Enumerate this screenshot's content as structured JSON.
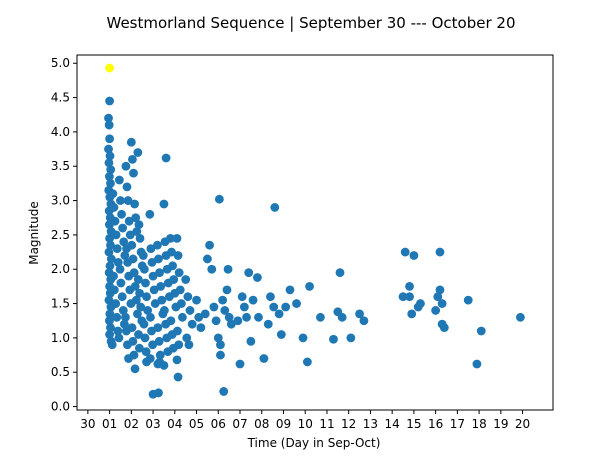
{
  "chart_data": {
    "type": "scatter",
    "title": "Westmorland Sequence | September 30 --- October 20",
    "xlabel": "Time (Day in Sep-Oct)",
    "ylabel": "Magnitude",
    "xlim": [
      -0.5,
      21.4
    ],
    "ylim": [
      -0.05,
      5.12
    ],
    "grid": false,
    "x_ticks": [
      {
        "value": 0,
        "label": "30"
      },
      {
        "value": 1,
        "label": "01"
      },
      {
        "value": 2,
        "label": "02"
      },
      {
        "value": 3,
        "label": "03"
      },
      {
        "value": 4,
        "label": "04"
      },
      {
        "value": 5,
        "label": "05"
      },
      {
        "value": 6,
        "label": "06"
      },
      {
        "value": 7,
        "label": "07"
      },
      {
        "value": 8,
        "label": "08"
      },
      {
        "value": 9,
        "label": "09"
      },
      {
        "value": 10,
        "label": "10"
      },
      {
        "value": 11,
        "label": "11"
      },
      {
        "value": 12,
        "label": "12"
      },
      {
        "value": 13,
        "label": "13"
      },
      {
        "value": 14,
        "label": "14"
      },
      {
        "value": 15,
        "label": "15"
      },
      {
        "value": 16,
        "label": "16"
      },
      {
        "value": 17,
        "label": "17"
      },
      {
        "value": 18,
        "label": "18"
      },
      {
        "value": 19,
        "label": "19"
      },
      {
        "value": 20,
        "label": "20"
      }
    ],
    "y_ticks": [
      {
        "value": 0.0,
        "label": "0.0"
      },
      {
        "value": 0.5,
        "label": "0.5"
      },
      {
        "value": 1.0,
        "label": "1.0"
      },
      {
        "value": 1.5,
        "label": "1.5"
      },
      {
        "value": 2.0,
        "label": "2.0"
      },
      {
        "value": 2.5,
        "label": "2.5"
      },
      {
        "value": 3.0,
        "label": "3.0"
      },
      {
        "value": 3.5,
        "label": "3.5"
      },
      {
        "value": 4.0,
        "label": "4.0"
      },
      {
        "value": 4.5,
        "label": "4.5"
      },
      {
        "value": 5.0,
        "label": "5.0"
      }
    ],
    "series": [
      {
        "color": "#1f77b4",
        "points": [
          [
            0.95,
            4.2
          ],
          [
            1.0,
            4.45
          ],
          [
            0.98,
            4.1
          ],
          [
            1.0,
            3.9
          ],
          [
            0.95,
            3.75
          ],
          [
            1.02,
            3.65
          ],
          [
            0.97,
            3.55
          ],
          [
            1.05,
            3.45
          ],
          [
            0.99,
            3.35
          ],
          [
            1.04,
            3.25
          ],
          [
            0.96,
            3.15
          ],
          [
            1.01,
            3.05
          ],
          [
            1.06,
            2.95
          ],
          [
            0.98,
            2.85
          ],
          [
            1.03,
            2.75
          ],
          [
            0.99,
            2.65
          ],
          [
            1.07,
            2.55
          ],
          [
            1.0,
            2.45
          ],
          [
            1.04,
            2.35
          ],
          [
            0.97,
            2.25
          ],
          [
            1.08,
            2.15
          ],
          [
            1.02,
            2.05
          ],
          [
            0.98,
            1.95
          ],
          [
            1.05,
            1.85
          ],
          [
            1.0,
            1.75
          ],
          [
            1.03,
            1.65
          ],
          [
            0.97,
            1.55
          ],
          [
            1.06,
            1.45
          ],
          [
            1.01,
            1.35
          ],
          [
            0.99,
            1.25
          ],
          [
            1.04,
            1.15
          ],
          [
            1.0,
            1.05
          ],
          [
            1.07,
            0.95
          ],
          [
            1.15,
            3.1
          ],
          [
            1.2,
            2.9
          ],
          [
            1.25,
            2.7
          ],
          [
            1.3,
            2.5
          ],
          [
            1.35,
            2.3
          ],
          [
            1.4,
            2.1
          ],
          [
            1.18,
            1.9
          ],
          [
            1.22,
            1.7
          ],
          [
            1.28,
            1.5
          ],
          [
            1.33,
            1.3
          ],
          [
            1.38,
            1.1
          ],
          [
            1.12,
            0.9
          ],
          [
            1.45,
            3.3
          ],
          [
            1.5,
            3.0
          ],
          [
            1.55,
            2.8
          ],
          [
            1.6,
            2.6
          ],
          [
            1.65,
            2.4
          ],
          [
            1.7,
            2.2
          ],
          [
            1.48,
            2.0
          ],
          [
            1.52,
            1.8
          ],
          [
            1.58,
            1.6
          ],
          [
            1.63,
            1.4
          ],
          [
            1.68,
            1.2
          ],
          [
            1.43,
            1.0
          ],
          [
            1.75,
            3.5
          ],
          [
            1.8,
            3.2
          ],
          [
            1.85,
            3.0
          ],
          [
            1.9,
            2.7
          ],
          [
            1.95,
            2.5
          ],
          [
            1.78,
            2.3
          ],
          [
            1.83,
            2.1
          ],
          [
            1.88,
            1.9
          ],
          [
            1.93,
            1.7
          ],
          [
            1.98,
            1.5
          ],
          [
            1.73,
            1.3
          ],
          [
            1.77,
            1.1
          ],
          [
            1.82,
            0.9
          ],
          [
            1.87,
            0.7
          ],
          [
            2.0,
            3.85
          ],
          [
            2.05,
            3.6
          ],
          [
            2.1,
            3.4
          ],
          [
            2.15,
            2.95
          ],
          [
            2.2,
            2.75
          ],
          [
            2.25,
            2.55
          ],
          [
            2.02,
            2.35
          ],
          [
            2.08,
            2.15
          ],
          [
            2.13,
            1.95
          ],
          [
            2.18,
            1.75
          ],
          [
            2.23,
            1.55
          ],
          [
            2.28,
            1.35
          ],
          [
            2.03,
            1.15
          ],
          [
            2.07,
            0.95
          ],
          [
            2.12,
            0.75
          ],
          [
            2.17,
            0.55
          ],
          [
            2.3,
            3.7
          ],
          [
            2.35,
            2.65
          ],
          [
            2.4,
            2.45
          ],
          [
            2.45,
            2.25
          ],
          [
            2.5,
            2.05
          ],
          [
            2.32,
            1.85
          ],
          [
            2.38,
            1.65
          ],
          [
            2.43,
            1.45
          ],
          [
            2.48,
            1.25
          ],
          [
            2.33,
            1.05
          ],
          [
            2.37,
            0.85
          ],
          [
            2.55,
            2.2
          ],
          [
            2.6,
            2.0
          ],
          [
            2.65,
            1.8
          ],
          [
            2.7,
            1.6
          ],
          [
            2.75,
            1.4
          ],
          [
            2.58,
            1.2
          ],
          [
            2.63,
            1.0
          ],
          [
            2.68,
            0.8
          ],
          [
            2.85,
            2.8
          ],
          [
            2.9,
            2.3
          ],
          [
            2.95,
            2.1
          ],
          [
            3.0,
            1.9
          ],
          [
            3.05,
            1.7
          ],
          [
            3.1,
            1.5
          ],
          [
            2.88,
            1.3
          ],
          [
            2.93,
            1.1
          ],
          [
            2.98,
            0.9
          ],
          [
            2.87,
            0.7
          ],
          [
            3.2,
            2.35
          ],
          [
            3.25,
            2.15
          ],
          [
            3.3,
            1.95
          ],
          [
            3.35,
            1.75
          ],
          [
            3.4,
            1.55
          ],
          [
            3.45,
            1.35
          ],
          [
            3.22,
            1.15
          ],
          [
            3.28,
            0.95
          ],
          [
            3.33,
            0.75
          ],
          [
            3.22,
            0.62
          ],
          [
            3.5,
            2.95
          ],
          [
            3.55,
            2.4
          ],
          [
            3.6,
            2.2
          ],
          [
            3.65,
            2.0
          ],
          [
            3.7,
            1.8
          ],
          [
            3.75,
            1.6
          ],
          [
            3.52,
            1.4
          ],
          [
            3.58,
            1.2
          ],
          [
            3.63,
            1.0
          ],
          [
            3.68,
            0.8
          ],
          [
            3.6,
            3.62
          ],
          [
            3.8,
            2.45
          ],
          [
            3.85,
            2.25
          ],
          [
            3.9,
            2.05
          ],
          [
            3.95,
            1.85
          ],
          [
            4.0,
            1.65
          ],
          [
            4.05,
            1.45
          ],
          [
            3.82,
            1.25
          ],
          [
            3.88,
            1.05
          ],
          [
            3.93,
            0.85
          ],
          [
            4.1,
            2.45
          ],
          [
            4.15,
            2.2
          ],
          [
            4.2,
            1.95
          ],
          [
            4.25,
            1.7
          ],
          [
            4.3,
            1.5
          ],
          [
            4.35,
            1.3
          ],
          [
            4.12,
            1.1
          ],
          [
            4.18,
            0.9
          ],
          [
            4.1,
            0.68
          ],
          [
            4.15,
            0.43
          ],
          [
            4.5,
            1.85
          ],
          [
            4.6,
            1.6
          ],
          [
            4.7,
            1.4
          ],
          [
            4.8,
            1.2
          ],
          [
            4.55,
            1.0
          ],
          [
            4.65,
            0.9
          ],
          [
            3.0,
            0.18
          ],
          [
            3.25,
            0.2
          ],
          [
            3.3,
            0.65
          ],
          [
            3.5,
            0.6
          ],
          [
            2.7,
            0.65
          ],
          [
            5.0,
            1.55
          ],
          [
            5.1,
            1.3
          ],
          [
            5.2,
            1.15
          ],
          [
            5.5,
            2.15
          ],
          [
            5.6,
            2.35
          ],
          [
            5.7,
            2.0
          ],
          [
            5.4,
            1.35
          ],
          [
            5.8,
            1.45
          ],
          [
            5.9,
            1.25
          ],
          [
            6.0,
            1.0
          ],
          [
            6.05,
            3.02
          ],
          [
            6.1,
            0.9
          ],
          [
            6.1,
            0.75
          ],
          [
            6.2,
            1.55
          ],
          [
            6.3,
            1.4
          ],
          [
            6.25,
            0.22
          ],
          [
            6.4,
            1.7
          ],
          [
            6.45,
            2.0
          ],
          [
            6.5,
            1.3
          ],
          [
            6.6,
            1.2
          ],
          [
            6.9,
            1.25
          ],
          [
            7.0,
            0.62
          ],
          [
            7.1,
            1.6
          ],
          [
            7.2,
            1.45
          ],
          [
            7.3,
            1.3
          ],
          [
            7.4,
            1.95
          ],
          [
            7.5,
            0.95
          ],
          [
            7.6,
            1.55
          ],
          [
            7.8,
            1.88
          ],
          [
            7.85,
            1.3
          ],
          [
            8.1,
            0.7
          ],
          [
            8.3,
            1.2
          ],
          [
            8.4,
            1.6
          ],
          [
            8.55,
            1.45
          ],
          [
            8.6,
            2.9
          ],
          [
            8.8,
            1.35
          ],
          [
            8.9,
            1.05
          ],
          [
            9.1,
            1.45
          ],
          [
            9.3,
            1.7
          ],
          [
            9.6,
            1.5
          ],
          [
            9.9,
            1.0
          ],
          [
            10.1,
            0.65
          ],
          [
            10.2,
            1.75
          ],
          [
            10.7,
            1.3
          ],
          [
            11.3,
            0.98
          ],
          [
            11.5,
            1.38
          ],
          [
            11.6,
            1.95
          ],
          [
            11.7,
            1.3
          ],
          [
            12.1,
            1.0
          ],
          [
            12.5,
            1.35
          ],
          [
            12.7,
            1.25
          ],
          [
            14.5,
            1.6
          ],
          [
            14.6,
            2.25
          ],
          [
            14.8,
            1.6
          ],
          [
            14.8,
            1.75
          ],
          [
            14.9,
            1.35
          ],
          [
            15.0,
            2.2
          ],
          [
            15.2,
            1.45
          ],
          [
            15.3,
            1.5
          ],
          [
            16.0,
            1.4
          ],
          [
            16.1,
            1.6
          ],
          [
            16.2,
            1.7
          ],
          [
            16.2,
            2.25
          ],
          [
            16.3,
            1.5
          ],
          [
            16.3,
            1.2
          ],
          [
            16.4,
            1.15
          ],
          [
            17.5,
            1.55
          ],
          [
            17.9,
            0.62
          ],
          [
            18.1,
            1.1
          ],
          [
            19.9,
            1.3
          ]
        ]
      },
      {
        "color": "#ffff00",
        "points": [
          [
            1.0,
            4.93
          ]
        ]
      }
    ]
  }
}
